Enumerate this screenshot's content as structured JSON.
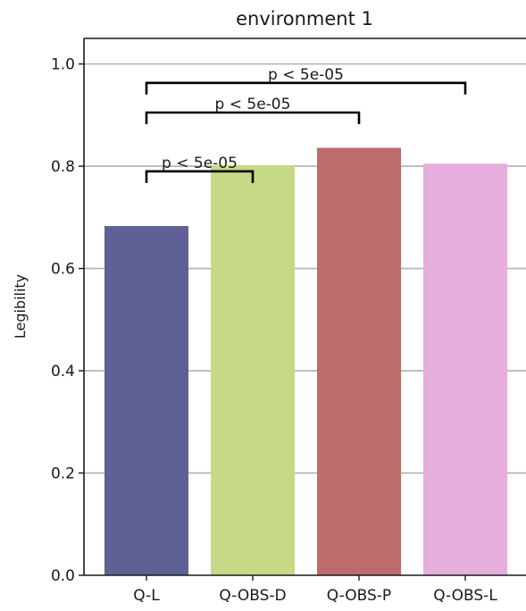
{
  "chart_data": {
    "type": "bar",
    "title": "environment 1",
    "xlabel": "",
    "ylabel": "Legibility",
    "categories": [
      "Q-L",
      "Q-OBS-D",
      "Q-OBS-P",
      "Q-OBS-L"
    ],
    "values": [
      0.683,
      0.802,
      0.836,
      0.805
    ],
    "colors": [
      "#5f6196",
      "#c6d986",
      "#bd6b6b",
      "#e5aedd"
    ],
    "ylim": [
      0,
      1.05
    ],
    "yticks": [
      0.0,
      0.2,
      0.4,
      0.6,
      0.8,
      1.0
    ],
    "ytick_labels": [
      "0.0",
      "0.2",
      "0.4",
      "0.6",
      "0.8",
      "1.0"
    ],
    "grid": "y",
    "annotations": [
      {
        "from": "Q-L",
        "to": "Q-OBS-D",
        "text": "p < 5e-05",
        "y": 0.79
      },
      {
        "from": "Q-L",
        "to": "Q-OBS-P",
        "text": "p < 5e-05",
        "y": 0.905
      },
      {
        "from": "Q-L",
        "to": "Q-OBS-L",
        "text": "p < 5e-05",
        "y": 0.963
      }
    ]
  }
}
